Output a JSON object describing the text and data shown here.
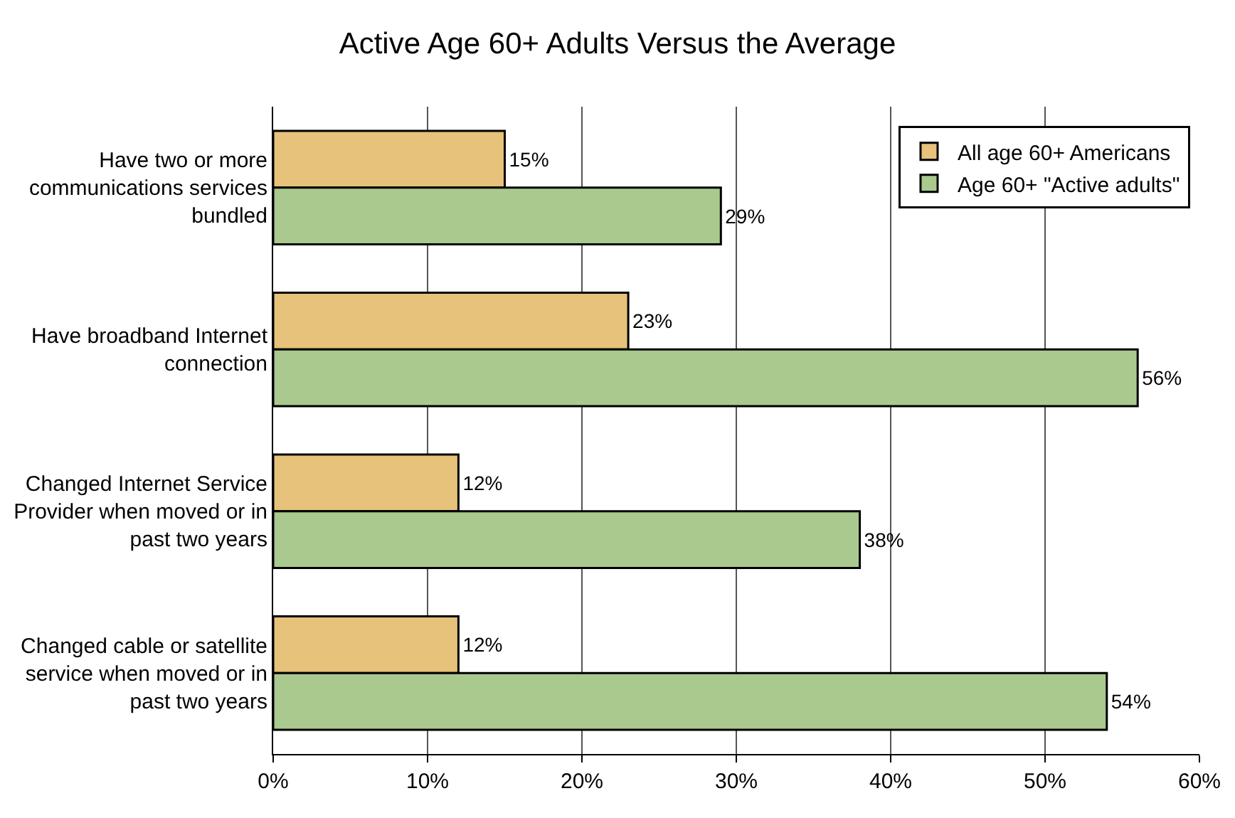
{
  "chart_data": {
    "type": "bar",
    "orientation": "horizontal",
    "title": "Active Age 60+ Adults Versus the Average",
    "categories": [
      "Have two or more communications services bundled",
      "Have broadband Internet connection",
      "Changed Internet Service Provider when moved or in past two years",
      "Changed cable or satellite service when moved or in past two years"
    ],
    "series": [
      {
        "name": "All age 60+ Americans",
        "color": "#e6c27a",
        "values": [
          15,
          23,
          12,
          12
        ],
        "value_labels": [
          "15%",
          "23%",
          "12%",
          "12%"
        ]
      },
      {
        "name": "Age 60+ \"Active adults\"",
        "color": "#a9c98e",
        "values": [
          29,
          56,
          38,
          54
        ],
        "value_labels": [
          "29%",
          "56%",
          "38%",
          "54%"
        ]
      }
    ],
    "xlim": [
      0,
      60
    ],
    "xticks": [
      {
        "value": 0,
        "label": "0%"
      },
      {
        "value": 10,
        "label": "10%"
      },
      {
        "value": 20,
        "label": "20%"
      },
      {
        "value": 30,
        "label": "30%"
      },
      {
        "value": 40,
        "label": "40%"
      },
      {
        "value": 50,
        "label": "50%"
      },
      {
        "value": 60,
        "label": "60%"
      }
    ],
    "grid": "x",
    "legend": "top right"
  }
}
